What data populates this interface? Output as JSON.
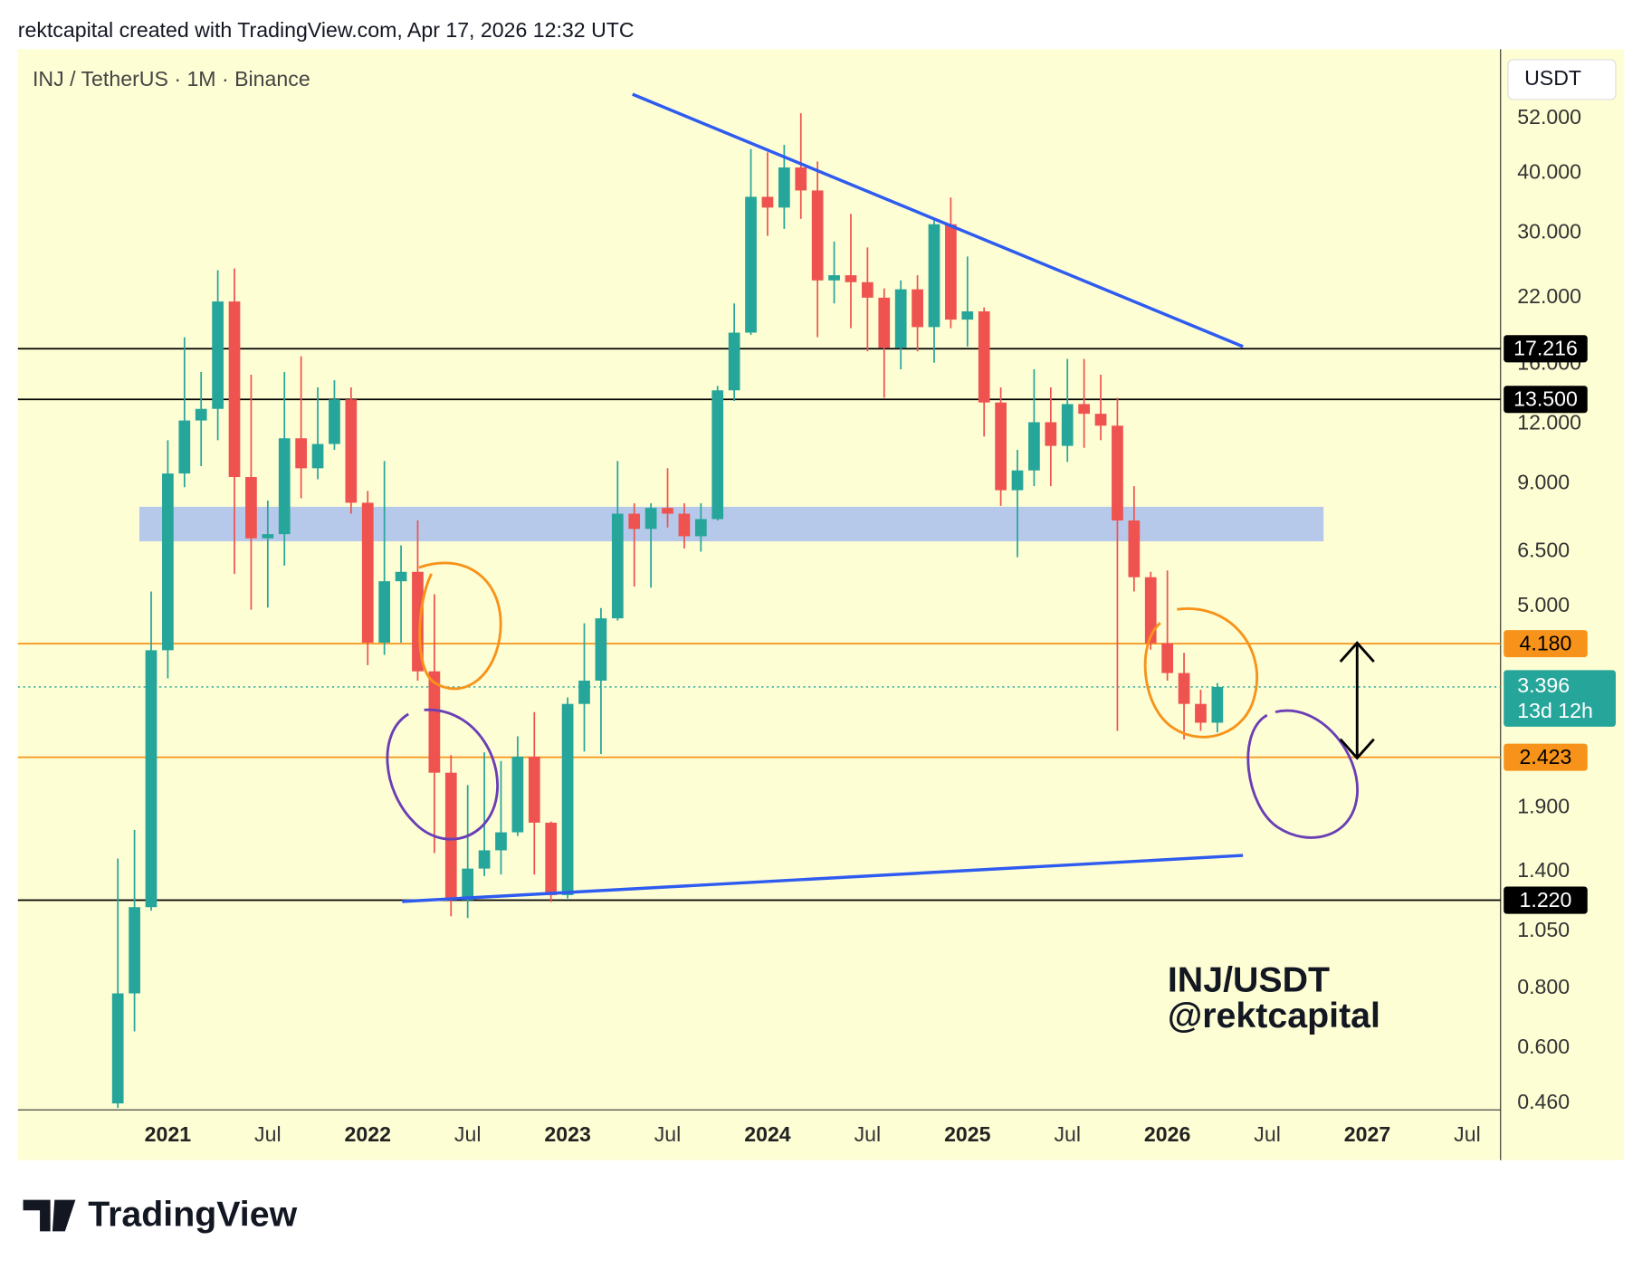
{
  "header": "rektcapital created with TradingView.com, Apr 17, 2026 12:32 UTC",
  "footer": "TradingView",
  "chart_data": {
    "type": "candlestick",
    "title": "INJ / TetherUS · 1M · Binance",
    "currency": "USDT",
    "watermark": [
      "INJ/USDT",
      "@rektcapital"
    ],
    "log_scale": true,
    "grid": false,
    "up_color": "#26a69a",
    "down_color": "#ef5350",
    "x": [
      "2020-10",
      "2020-11",
      "2020-12",
      "2021-01",
      "2021-02",
      "2021-03",
      "2021-04",
      "2021-05",
      "2021-06",
      "2021-07",
      "2021-08",
      "2021-09",
      "2021-10",
      "2021-11",
      "2021-12",
      "2022-01",
      "2022-02",
      "2022-03",
      "2022-04",
      "2022-05",
      "2022-06",
      "2022-07",
      "2022-08",
      "2022-09",
      "2022-10",
      "2022-11",
      "2022-12",
      "2023-01",
      "2023-02",
      "2023-03",
      "2023-04",
      "2023-05",
      "2023-06",
      "2023-07",
      "2023-08",
      "2023-09",
      "2023-10",
      "2023-11",
      "2023-12",
      "2024-01",
      "2024-02",
      "2024-03",
      "2024-04",
      "2024-05",
      "2024-06",
      "2024-07",
      "2024-08",
      "2024-09",
      "2024-10",
      "2024-11",
      "2024-12",
      "2025-01",
      "2025-02",
      "2025-03",
      "2025-04",
      "2025-05",
      "2025-06",
      "2025-07",
      "2025-08",
      "2025-09",
      "2025-10",
      "2025-11",
      "2025-12",
      "2026-01",
      "2026-02",
      "2026-03",
      "2026-04"
    ],
    "open": [
      0.46,
      0.78,
      1.18,
      4.05,
      9.46,
      12.2,
      12.9,
      21.6,
      9.3,
      6.93,
      7.07,
      11.2,
      9.7,
      10.9,
      13.5,
      8.22,
      4.2,
      5.64,
      5.9,
      3.66,
      2.25,
      1.22,
      1.42,
      1.55,
      1.69,
      2.43,
      1.77,
      1.25,
      3.13,
      3.5,
      4.72,
      7.8,
      7.25,
      8.02,
      7.8,
      7.0,
      7.6,
      14.1,
      18.6,
      35.7,
      33.9,
      41.1,
      36.8,
      23.9,
      24.5,
      23.7,
      22.0,
      17.3,
      22.9,
      19.1,
      31.3,
      19.8,
      20.6,
      13.3,
      8.73,
      9.6,
      12.1,
      10.8,
      13.2,
      12.6,
      11.9,
      7.55,
      5.75,
      4.19,
      3.63,
      3.13,
      2.86
    ],
    "high": [
      1.49,
      1.71,
      5.37,
      11.1,
      18.2,
      15.4,
      25.1,
      25.3,
      15.2,
      8.31,
      15.4,
      16.6,
      14.3,
      14.8,
      14.3,
      8.7,
      10.05,
      6.7,
      7.55,
      5.3,
      2.45,
      2.12,
      2.48,
      2.38,
      2.68,
      3.01,
      1.78,
      3.23,
      4.61,
      4.96,
      10.05,
      8.2,
      8.2,
      9.7,
      8.2,
      8.2,
      14.4,
      21.4,
      44.9,
      44.2,
      45.8,
      53.3,
      42.3,
      28.8,
      32.9,
      28.0,
      23.0,
      23.9,
      24.5,
      31.9,
      35.6,
      26.8,
      21.0,
      14.3,
      10.6,
      15.6,
      14.3,
      16.4,
      16.4,
      15.2,
      13.6,
      8.9,
      5.9,
      5.94,
      4.0,
      3.35,
      3.46
    ],
    "low": [
      0.45,
      0.65,
      1.16,
      3.54,
      8.86,
      9.8,
      11.1,
      5.84,
      4.92,
      4.97,
      6.08,
      8.4,
      9.2,
      10.6,
      7.8,
      3.77,
      3.96,
      4.2,
      3.5,
      1.53,
      1.13,
      1.12,
      1.37,
      1.38,
      1.66,
      1.38,
      1.21,
      1.23,
      2.49,
      2.46,
      4.67,
      5.5,
      5.47,
      7.3,
      6.6,
      6.5,
      7.55,
      13.4,
      18.4,
      29.6,
      30.6,
      32.1,
      18.2,
      21.4,
      19.0,
      17.0,
      13.6,
      15.6,
      17.0,
      16.1,
      19.0,
      17.4,
      11.3,
      8.1,
      6.33,
      8.9,
      8.9,
      10.0,
      10.7,
      11.1,
      2.75,
      5.37,
      4.06,
      3.5,
      2.64,
      2.75,
      2.73
    ],
    "close": [
      0.78,
      1.18,
      4.05,
      9.46,
      12.2,
      12.9,
      21.6,
      9.3,
      6.93,
      7.07,
      11.2,
      9.7,
      10.9,
      13.5,
      8.22,
      4.2,
      5.64,
      5.9,
      3.66,
      2.25,
      1.22,
      1.42,
      1.55,
      1.69,
      2.43,
      1.77,
      1.25,
      3.13,
      3.5,
      4.72,
      7.8,
      7.25,
      8.02,
      7.8,
      7.0,
      7.6,
      14.1,
      18.6,
      35.7,
      33.9,
      41.1,
      36.8,
      23.9,
      24.5,
      23.7,
      22.0,
      17.3,
      22.9,
      19.1,
      31.3,
      19.8,
      20.6,
      13.3,
      8.73,
      9.6,
      12.1,
      10.8,
      13.2,
      12.6,
      11.9,
      7.55,
      5.75,
      4.19,
      3.63,
      3.13,
      2.86,
      3.396
    ],
    "xlim": [
      "2020-04",
      "2027-09"
    ],
    "xticks": [
      {
        "value": "2021-01",
        "label": "2021"
      },
      {
        "value": "2021-07",
        "label": "Jul"
      },
      {
        "value": "2022-01",
        "label": "2022"
      },
      {
        "value": "2022-07",
        "label": "Jul"
      },
      {
        "value": "2023-01",
        "label": "2023"
      },
      {
        "value": "2023-07",
        "label": "Jul"
      },
      {
        "value": "2024-01",
        "label": "2024"
      },
      {
        "value": "2024-07",
        "label": "Jul"
      },
      {
        "value": "2025-01",
        "label": "2025"
      },
      {
        "value": "2025-07",
        "label": "Jul"
      },
      {
        "value": "2026-01",
        "label": "2026"
      },
      {
        "value": "2026-07",
        "label": "Jul"
      },
      {
        "value": "2027-01",
        "label": "2027"
      },
      {
        "value": "2027-07",
        "label": "Jul"
      }
    ],
    "ylim": [
      0.446,
      72.5
    ],
    "yticks": [
      {
        "value": 52,
        "label": "52.000"
      },
      {
        "value": 40,
        "label": "40.000"
      },
      {
        "value": 30,
        "label": "30.000"
      },
      {
        "value": 22,
        "label": "22.000"
      },
      {
        "value": 16,
        "label": "16.000"
      },
      {
        "value": 12,
        "label": "12.000"
      },
      {
        "value": 9,
        "label": "9.000"
      },
      {
        "value": 6.5,
        "label": "6.500"
      },
      {
        "value": 5,
        "label": "5.000"
      },
      {
        "value": 1.9,
        "label": "1.900"
      },
      {
        "value": 1.4,
        "label": "1.400"
      },
      {
        "value": 1.05,
        "label": "1.050"
      },
      {
        "value": 0.8,
        "label": "0.800"
      },
      {
        "value": 0.6,
        "label": "0.600"
      },
      {
        "value": 0.46,
        "label": "0.460"
      }
    ],
    "levels": [
      {
        "value": 17.216,
        "label": "17.216",
        "color": "#000000"
      },
      {
        "value": 13.5,
        "label": "13.500",
        "color": "#000000"
      },
      {
        "value": 4.18,
        "label": "4.180",
        "color": "#f7931a"
      },
      {
        "value": 2.423,
        "label": "2.423",
        "color": "#f7931a"
      },
      {
        "value": 1.22,
        "label": "1.220",
        "color": "#000000"
      }
    ],
    "last_price": {
      "value": 3.396,
      "label": "3.396",
      "countdown": "13d 12h",
      "color": "#26a69a"
    }
  }
}
